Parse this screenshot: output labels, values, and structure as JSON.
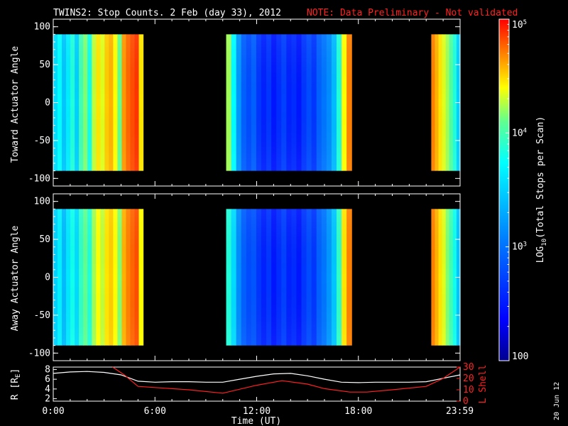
{
  "header": {
    "title": "TWINS2: Stop Counts.  2 Feb (day  33), 2012",
    "note": "NOTE: Data Preliminary - Not validated"
  },
  "side_date": "20 Jun 12",
  "colors": {
    "background": "#000000",
    "axis": "#ffffff",
    "note": "#ff2020",
    "rline": "#ffffff",
    "lshell": "#ff2020"
  },
  "chart_data": [
    {
      "type": "heatmap",
      "ylabel": "Toward Actuator Angle",
      "ylim": [
        -110,
        110
      ],
      "yticks": [
        100,
        50,
        0,
        -50,
        -100
      ],
      "xlim": [
        0,
        24
      ],
      "data_range_y": [
        -90,
        90
      ],
      "segments": [
        {
          "start": 0.0,
          "end": 5.3,
          "cols": [
            0.52,
            0.58,
            0.48,
            0.55,
            0.62,
            0.5,
            0.66,
            0.72,
            0.6,
            0.76,
            0.82,
            0.78,
            0.84,
            0.86,
            0.8,
            0.7,
            0.88,
            0.92,
            0.94,
            0.96,
            0.82
          ]
        },
        {
          "start": 10.2,
          "end": 17.6,
          "cols": [
            0.74,
            0.58,
            0.4,
            0.3,
            0.26,
            0.3,
            0.22,
            0.18,
            0.22,
            0.16,
            0.2,
            0.24,
            0.18,
            0.2,
            0.16,
            0.22,
            0.26,
            0.22,
            0.3,
            0.34,
            0.38,
            0.46,
            0.62,
            0.8,
            0.9
          ]
        },
        {
          "start": 22.3,
          "end": 24.0,
          "cols": [
            0.9,
            0.86,
            0.82,
            0.78,
            0.74,
            0.68,
            0.62,
            0.5
          ]
        }
      ]
    },
    {
      "type": "heatmap",
      "ylabel": "Away Actuator Angle",
      "ylim": [
        -110,
        110
      ],
      "yticks": [
        100,
        50,
        0,
        -50,
        -100
      ],
      "xlim": [
        0,
        24
      ],
      "data_range_y": [
        -90,
        90
      ],
      "segments": [
        {
          "start": 0.0,
          "end": 5.3,
          "cols": [
            0.5,
            0.56,
            0.46,
            0.54,
            0.6,
            0.52,
            0.64,
            0.7,
            0.62,
            0.74,
            0.8,
            0.76,
            0.82,
            0.84,
            0.8,
            0.72,
            0.86,
            0.9,
            0.92,
            0.94,
            0.8
          ]
        },
        {
          "start": 10.2,
          "end": 17.6,
          "cols": [
            0.62,
            0.52,
            0.38,
            0.3,
            0.26,
            0.28,
            0.22,
            0.18,
            0.22,
            0.16,
            0.2,
            0.24,
            0.18,
            0.2,
            0.16,
            0.22,
            0.26,
            0.22,
            0.3,
            0.34,
            0.4,
            0.48,
            0.64,
            0.82,
            0.9
          ]
        },
        {
          "start": 22.3,
          "end": 24.0,
          "cols": [
            0.9,
            0.86,
            0.82,
            0.78,
            0.72,
            0.66,
            0.6,
            0.48
          ]
        }
      ]
    },
    {
      "type": "line",
      "ylabel": "R [RE]",
      "ylabel2": "L Shell",
      "ylim": [
        1.5,
        8.5
      ],
      "y2lim": [
        0,
        30
      ],
      "yticks": [
        2,
        4,
        6,
        8
      ],
      "y2ticks": [
        0,
        10,
        20,
        30
      ],
      "xlim": [
        0,
        24
      ],
      "xticks": [
        "0:00",
        "6:00",
        "12:00",
        "18:00",
        "23:59"
      ],
      "xtick_values": [
        0,
        6,
        12,
        18,
        23.98
      ],
      "xlabel": "Time (UT)",
      "series": [
        {
          "x": [
            0,
            1,
            2,
            3,
            4,
            5,
            6,
            7,
            8,
            9,
            10,
            11,
            12,
            13,
            14,
            15,
            16,
            17,
            18,
            19,
            20,
            21,
            22,
            23,
            24
          ],
          "y": [
            7.2,
            7.5,
            7.6,
            7.4,
            6.9,
            5.6,
            5.4,
            5.5,
            5.5,
            5.4,
            5.4,
            6.0,
            6.6,
            7.1,
            7.2,
            6.7,
            6.0,
            5.4,
            5.3,
            5.4,
            5.4,
            5.4,
            5.5,
            6.2,
            6.9
          ]
        },
        {
          "axis": "right",
          "x": [
            3.5,
            4.2,
            5.0,
            6.0,
            8.0,
            10.0,
            12.0,
            13.5,
            15.0,
            16.0,
            17.5,
            18.5,
            20.0,
            22.0,
            23.0,
            24.0
          ],
          "y": [
            30,
            23,
            13,
            12,
            10,
            7,
            14,
            18,
            15,
            11,
            8,
            8,
            10,
            13,
            20,
            30
          ]
        }
      ]
    }
  ],
  "colorbar": {
    "label": "LOG10(Total Stops per Scan)",
    "label_main": "LOG",
    "label_sub": "10",
    "label_rest": "(Total Stops per Scan)",
    "ticks": [
      {
        "base": "10",
        "exp": "5",
        "value": 5
      },
      {
        "base": "10",
        "exp": "4",
        "value": 4
      },
      {
        "base": "10",
        "exp": "3",
        "value": 3
      },
      {
        "base": "100",
        "exp": "",
        "value": 2
      }
    ],
    "range": [
      2,
      5
    ]
  }
}
